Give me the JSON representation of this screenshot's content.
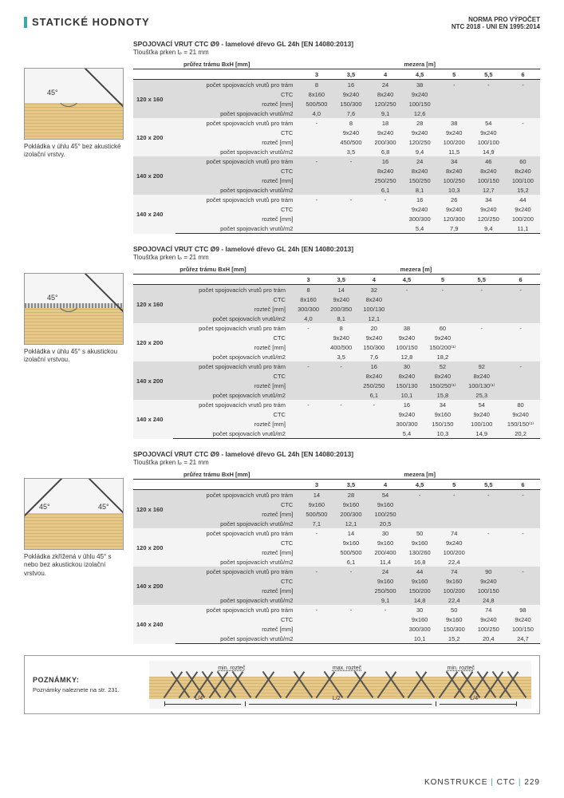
{
  "page_title": "STATICKÉ HODNOTY",
  "norm_line1": "NORMA PRO VÝPOČET",
  "norm_line2": "NTC 2018 - UNI EN 1995:2014",
  "footer": {
    "k": "KONSTRUKCE",
    "mid": "CTC",
    "page": "229"
  },
  "notes": {
    "title": "POZNÁMKY:",
    "text": "Poznámky naleznete na str. 231.",
    "min": "min. rozteč",
    "max": "max. rozteč",
    "L4": "L/4",
    "L2": "L/2"
  },
  "row_params": [
    "počet spojovacích vrutů pro trám",
    "CTC",
    "rozteč [mm]",
    "počet spojovacích vrutů/m2"
  ],
  "beam_header": "průřez trámu BxH [mm]",
  "gap_header": "mezera [m]",
  "gap_cols": [
    "3",
    "3,5",
    "4",
    "4,5",
    "5",
    "5,5",
    "6"
  ],
  "dims": [
    "120 x 160",
    "120 x 200",
    "140 x 200",
    "140 x 240"
  ],
  "sections": [
    {
      "title": "SPOJOVACÍ VRUT CTC  Ø9 - lamelové dřevo GL 24h [EN 14080:2013]",
      "sub": "Tloušťka prken tₚ = 21 mm",
      "caption": "Pokládka v úhlu 45° bez akustické izolační vrstvy.",
      "diagram": "single45",
      "rows": [
        [
          [
            "8",
            "16",
            "24",
            "38",
            "-",
            "-",
            "-"
          ],
          [
            "8x160",
            "9x240",
            "8x240",
            "9x240",
            "",
            "",
            ""
          ],
          [
            "500/500",
            "150/300",
            "120/250",
            "100/150",
            "",
            "",
            ""
          ],
          [
            "4,0",
            "7,6",
            "9,1",
            "12,6",
            "",
            "",
            ""
          ]
        ],
        [
          [
            "-",
            "8",
            "18",
            "28",
            "38",
            "54",
            "-"
          ],
          [
            "",
            "9x240",
            "9x240",
            "9x240",
            "9x240",
            "9x240",
            ""
          ],
          [
            "",
            "450/500",
            "200/300",
            "120/250",
            "100/200",
            "100/100",
            ""
          ],
          [
            "",
            "3,5",
            "6,8",
            "9,4",
            "11,5",
            "14,9",
            ""
          ]
        ],
        [
          [
            "-",
            "-",
            "16",
            "24",
            "34",
            "46",
            "60"
          ],
          [
            "",
            "",
            "8x240",
            "8x240",
            "8x240",
            "8x240",
            "8x240"
          ],
          [
            "",
            "",
            "250/250",
            "150/250",
            "100/250",
            "100/150",
            "100/100"
          ],
          [
            "",
            "",
            "6,1",
            "8,1",
            "10,3",
            "12,7",
            "15,2"
          ]
        ],
        [
          [
            "-",
            "-",
            "-",
            "16",
            "26",
            "34",
            "44"
          ],
          [
            "",
            "",
            "",
            "9x240",
            "9x240",
            "9x240",
            "9x240"
          ],
          [
            "",
            "",
            "",
            "300/300",
            "120/300",
            "120/250",
            "100/200"
          ],
          [
            "",
            "",
            "",
            "5,4",
            "7,9",
            "9,4",
            "11,1"
          ]
        ]
      ]
    },
    {
      "title": "SPOJOVACÍ VRUT CTC  Ø9 - lamelové dřevo GL 24h [EN 14080:2013]",
      "sub": "Tloušťka prken tₚ = 21 mm",
      "caption": "Pokládka v úhlu 45° s akustickou izolační vrstvou.",
      "diagram": "single45ins",
      "rows": [
        [
          [
            "8",
            "14",
            "32",
            "-",
            "-",
            "-",
            "-"
          ],
          [
            "8x160",
            "9x240",
            "8x240",
            "",
            "",
            "",
            ""
          ],
          [
            "300/300",
            "200/350",
            "100/130",
            "",
            "",
            "",
            ""
          ],
          [
            "4,0",
            "8,1",
            "12,1",
            "",
            "",
            "",
            ""
          ]
        ],
        [
          [
            "-",
            "8",
            "20",
            "38",
            "60",
            "-",
            "-"
          ],
          [
            "",
            "9x240",
            "9x240",
            "9x240",
            "9x240",
            "",
            ""
          ],
          [
            "",
            "400/500",
            "150/300",
            "100/150",
            "150/200⁽¹⁾",
            "",
            ""
          ],
          [
            "",
            "3,5",
            "7,6",
            "12,8",
            "18,2",
            "",
            ""
          ]
        ],
        [
          [
            "-",
            "-",
            "16",
            "30",
            "52",
            "92",
            "-"
          ],
          [
            "",
            "",
            "8x240",
            "8x240",
            "8x240",
            "8x240",
            ""
          ],
          [
            "",
            "",
            "250/250",
            "150/130",
            "150/250⁽¹⁾",
            "100/130⁽¹⁾",
            ""
          ],
          [
            "",
            "",
            "6,1",
            "10,1",
            "15,8",
            "25,3",
            ""
          ]
        ],
        [
          [
            "-",
            "-",
            "-",
            "16",
            "34",
            "54",
            "80"
          ],
          [
            "",
            "",
            "",
            "9x240",
            "9x160",
            "9x240",
            "9x240"
          ],
          [
            "",
            "",
            "",
            "300/300",
            "150/150",
            "100/100",
            "150/150⁽¹⁾"
          ],
          [
            "",
            "",
            "",
            "5,4",
            "10,3",
            "14,9",
            "20,2"
          ]
        ]
      ]
    },
    {
      "title": "SPOJOVACÍ VRUT CTC  Ø9 - lamelové dřevo GL 24h [EN 14080:2013]",
      "sub": "Tloušťka prken tₚ = 21 mm",
      "caption": "Pokládka zkřížená v úhlu 45° s nebo bez akustickou izolační vrstvou.",
      "diagram": "cross45",
      "rows": [
        [
          [
            "14",
            "28",
            "54",
            "-",
            "-",
            "-",
            "-"
          ],
          [
            "9x160",
            "9x160",
            "9x160",
            "",
            "",
            "",
            ""
          ],
          [
            "500/500",
            "200/300",
            "100/250",
            "",
            "",
            "",
            ""
          ],
          [
            "7,1",
            "12,1",
            "20,5",
            "",
            "",
            "",
            ""
          ]
        ],
        [
          [
            "-",
            "14",
            "30",
            "50",
            "74",
            "-",
            "-"
          ],
          [
            "",
            "9x160",
            "9x160",
            "9x160",
            "9x240",
            "",
            ""
          ],
          [
            "",
            "500/500",
            "200/400",
            "130/260",
            "100/200",
            "",
            ""
          ],
          [
            "",
            "6,1",
            "11,4",
            "16,8",
            "22,4",
            "",
            ""
          ]
        ],
        [
          [
            "-",
            "-",
            "24",
            "44",
            "74",
            "90",
            "-"
          ],
          [
            "",
            "",
            "9x160",
            "9x160",
            "9x160",
            "9x240",
            ""
          ],
          [
            "",
            "",
            "250/500",
            "150/200",
            "100/200",
            "100/150",
            ""
          ],
          [
            "",
            "",
            "9,1",
            "14,8",
            "22,4",
            "24,8",
            ""
          ]
        ],
        [
          [
            "-",
            "-",
            "-",
            "30",
            "50",
            "74",
            "98"
          ],
          [
            "",
            "",
            "",
            "9x160",
            "9x160",
            "9x240",
            "9x240"
          ],
          [
            "",
            "",
            "",
            "300/300",
            "150/300",
            "100/250",
            "100/150"
          ],
          [
            "",
            "",
            "",
            "10,1",
            "15,2",
            "20,4",
            "24,7"
          ]
        ]
      ]
    }
  ]
}
